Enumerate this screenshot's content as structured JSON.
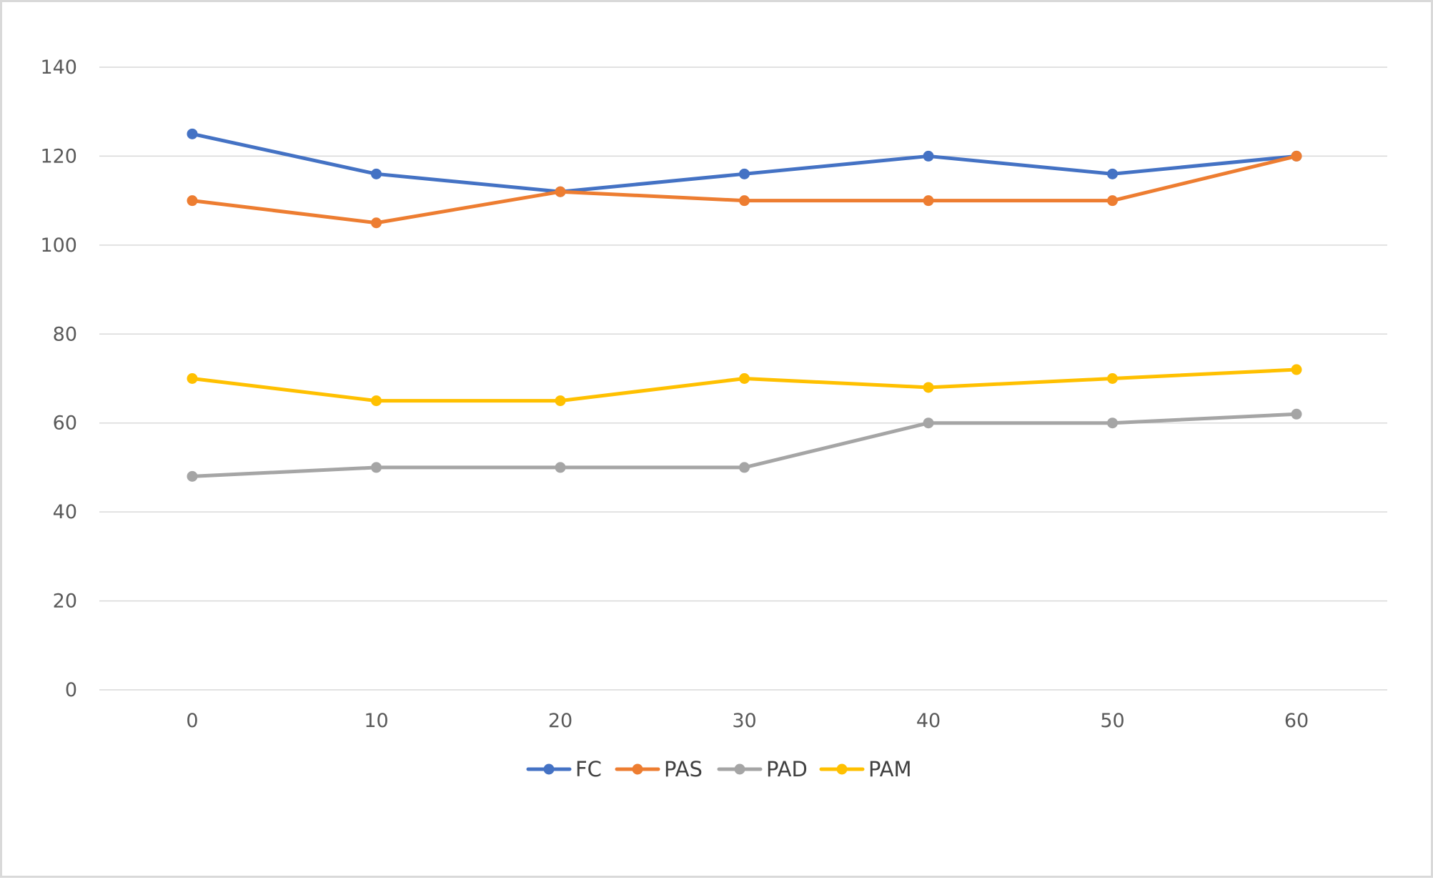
{
  "chart_data": {
    "type": "line",
    "title": "",
    "xlabel": "",
    "ylabel": "",
    "x": [
      0,
      10,
      20,
      30,
      40,
      50,
      60
    ],
    "ylim": [
      0,
      140
    ],
    "y_ticks": [
      0,
      20,
      40,
      60,
      80,
      100,
      120,
      140
    ],
    "grid": true,
    "legend_position": "bottom",
    "series": [
      {
        "name": "FC",
        "color": "#4472C4",
        "values": [
          125,
          116,
          112,
          116,
          120,
          116,
          120
        ]
      },
      {
        "name": "PAS",
        "color": "#ED7D31",
        "values": [
          110,
          105,
          112,
          110,
          110,
          110,
          120
        ]
      },
      {
        "name": "PAD",
        "color": "#A5A5A5",
        "values": [
          48,
          50,
          50,
          50,
          60,
          60,
          62
        ]
      },
      {
        "name": "PAM",
        "color": "#FFC000",
        "values": [
          70,
          65,
          65,
          70,
          68,
          70,
          72
        ]
      }
    ]
  }
}
